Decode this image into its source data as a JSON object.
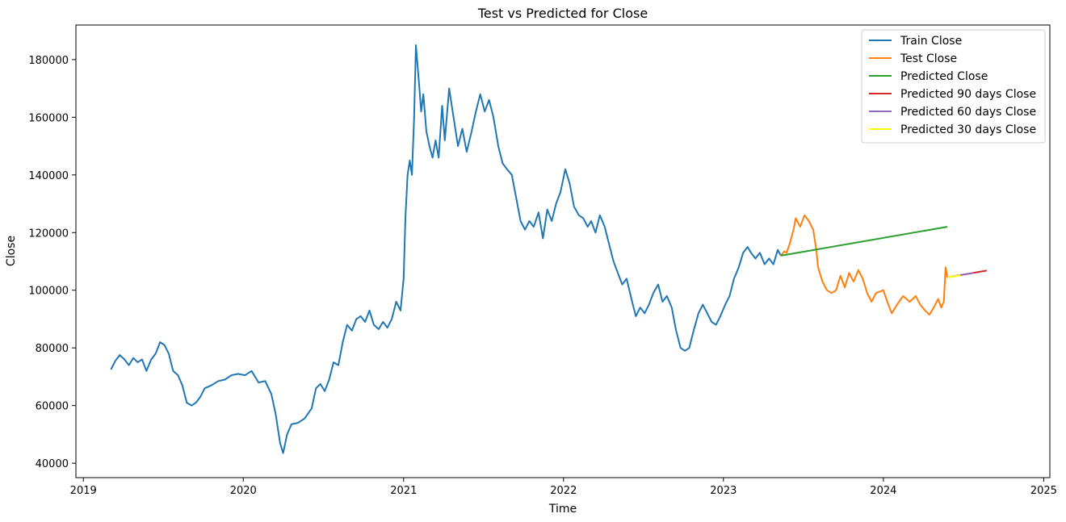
{
  "chart_data": {
    "type": "line",
    "title": "Test vs Predicted for Close",
    "xlabel": "Time",
    "ylabel": "Close",
    "x_scale": "date",
    "xlim": [
      "2018-12-15",
      "2025-01-15"
    ],
    "ylim": [
      35000,
      192000
    ],
    "grid": false,
    "legend_position": "top-right",
    "x_ticks": [
      {
        "date": "2019-01-01",
        "label": "2019"
      },
      {
        "date": "2020-01-01",
        "label": "2020"
      },
      {
        "date": "2021-01-01",
        "label": "2021"
      },
      {
        "date": "2022-01-01",
        "label": "2022"
      },
      {
        "date": "2023-01-01",
        "label": "2023"
      },
      {
        "date": "2024-01-01",
        "label": "2024"
      },
      {
        "date": "2025-01-01",
        "label": "2025"
      }
    ],
    "y_ticks": [
      {
        "value": 40000,
        "label": "40000"
      },
      {
        "value": 60000,
        "label": "60000"
      },
      {
        "value": 80000,
        "label": "80000"
      },
      {
        "value": 100000,
        "label": "100000"
      },
      {
        "value": 120000,
        "label": "120000"
      },
      {
        "value": 140000,
        "label": "140000"
      },
      {
        "value": 160000,
        "label": "160000"
      },
      {
        "value": 180000,
        "label": "180000"
      }
    ],
    "series": [
      {
        "name": "Train Close",
        "color": "#1f77b4",
        "points": [
          [
            "2019-03-05",
            72500
          ],
          [
            "2019-03-15",
            75500
          ],
          [
            "2019-03-25",
            77500
          ],
          [
            "2019-04-05",
            76000
          ],
          [
            "2019-04-15",
            74000
          ],
          [
            "2019-04-25",
            76500
          ],
          [
            "2019-05-05",
            75000
          ],
          [
            "2019-05-15",
            76000
          ],
          [
            "2019-05-25",
            72000
          ],
          [
            "2019-06-05",
            76000
          ],
          [
            "2019-06-15",
            78000
          ],
          [
            "2019-06-25",
            82000
          ],
          [
            "2019-07-05",
            81000
          ],
          [
            "2019-07-15",
            78000
          ],
          [
            "2019-07-25",
            72000
          ],
          [
            "2019-08-05",
            70500
          ],
          [
            "2019-08-15",
            67000
          ],
          [
            "2019-08-25",
            61000
          ],
          [
            "2019-09-05",
            60000
          ],
          [
            "2019-09-15",
            61000
          ],
          [
            "2019-09-25",
            63000
          ],
          [
            "2019-10-05",
            66000
          ],
          [
            "2019-10-20",
            67000
          ],
          [
            "2019-11-05",
            68500
          ],
          [
            "2019-11-20",
            69000
          ],
          [
            "2019-12-05",
            70500
          ],
          [
            "2019-12-20",
            71000
          ],
          [
            "2020-01-05",
            70500
          ],
          [
            "2020-01-20",
            72000
          ],
          [
            "2020-02-05",
            68000
          ],
          [
            "2020-02-20",
            68500
          ],
          [
            "2020-03-05",
            64000
          ],
          [
            "2020-03-15",
            57000
          ],
          [
            "2020-03-25",
            47000
          ],
          [
            "2020-04-01",
            43500
          ],
          [
            "2020-04-10",
            50000
          ],
          [
            "2020-04-20",
            53500
          ],
          [
            "2020-05-05",
            54000
          ],
          [
            "2020-05-20",
            55500
          ],
          [
            "2020-06-05",
            59000
          ],
          [
            "2020-06-15",
            66000
          ],
          [
            "2020-06-25",
            67500
          ],
          [
            "2020-07-05",
            65000
          ],
          [
            "2020-07-15",
            69000
          ],
          [
            "2020-07-25",
            75000
          ],
          [
            "2020-08-05",
            74000
          ],
          [
            "2020-08-15",
            82000
          ],
          [
            "2020-08-25",
            88000
          ],
          [
            "2020-09-05",
            86000
          ],
          [
            "2020-09-15",
            90000
          ],
          [
            "2020-09-25",
            91000
          ],
          [
            "2020-10-05",
            89000
          ],
          [
            "2020-10-15",
            93000
          ],
          [
            "2020-10-25",
            88000
          ],
          [
            "2020-11-05",
            86500
          ],
          [
            "2020-11-15",
            89000
          ],
          [
            "2020-11-25",
            87000
          ],
          [
            "2020-12-05",
            90000
          ],
          [
            "2020-12-15",
            96000
          ],
          [
            "2020-12-25",
            93000
          ],
          [
            "2021-01-01",
            104000
          ],
          [
            "2021-01-05",
            125000
          ],
          [
            "2021-01-10",
            140000
          ],
          [
            "2021-01-15",
            145000
          ],
          [
            "2021-01-20",
            140000
          ],
          [
            "2021-01-25",
            160000
          ],
          [
            "2021-01-29",
            185000
          ],
          [
            "2021-02-05",
            172000
          ],
          [
            "2021-02-10",
            162000
          ],
          [
            "2021-02-15",
            168000
          ],
          [
            "2021-02-22",
            155000
          ],
          [
            "2021-03-01",
            150000
          ],
          [
            "2021-03-08",
            146000
          ],
          [
            "2021-03-15",
            152000
          ],
          [
            "2021-03-22",
            146000
          ],
          [
            "2021-03-30",
            164000
          ],
          [
            "2021-04-05",
            152000
          ],
          [
            "2021-04-15",
            170000
          ],
          [
            "2021-04-25",
            160000
          ],
          [
            "2021-05-05",
            150000
          ],
          [
            "2021-05-15",
            156000
          ],
          [
            "2021-05-25",
            148000
          ],
          [
            "2021-06-05",
            155000
          ],
          [
            "2021-06-15",
            162000
          ],
          [
            "2021-06-25",
            168000
          ],
          [
            "2021-07-05",
            162000
          ],
          [
            "2021-07-15",
            166000
          ],
          [
            "2021-07-25",
            160000
          ],
          [
            "2021-08-05",
            150000
          ],
          [
            "2021-08-15",
            144000
          ],
          [
            "2021-08-25",
            142000
          ],
          [
            "2021-09-05",
            140000
          ],
          [
            "2021-09-15",
            132000
          ],
          [
            "2021-09-25",
            124000
          ],
          [
            "2021-10-05",
            121000
          ],
          [
            "2021-10-15",
            124000
          ],
          [
            "2021-10-25",
            122000
          ],
          [
            "2021-11-05",
            127000
          ],
          [
            "2021-11-15",
            118000
          ],
          [
            "2021-11-25",
            128000
          ],
          [
            "2021-12-05",
            124000
          ],
          [
            "2021-12-15",
            130000
          ],
          [
            "2021-12-25",
            134000
          ],
          [
            "2022-01-05",
            142000
          ],
          [
            "2022-01-15",
            137000
          ],
          [
            "2022-01-25",
            129000
          ],
          [
            "2022-02-05",
            126000
          ],
          [
            "2022-02-15",
            125000
          ],
          [
            "2022-02-25",
            122000
          ],
          [
            "2022-03-05",
            124000
          ],
          [
            "2022-03-15",
            120000
          ],
          [
            "2022-03-25",
            126000
          ],
          [
            "2022-04-05",
            122000
          ],
          [
            "2022-04-15",
            116000
          ],
          [
            "2022-04-25",
            110000
          ],
          [
            "2022-05-05",
            106000
          ],
          [
            "2022-05-15",
            102000
          ],
          [
            "2022-05-25",
            104000
          ],
          [
            "2022-06-05",
            97000
          ],
          [
            "2022-06-15",
            91000
          ],
          [
            "2022-06-25",
            94000
          ],
          [
            "2022-07-05",
            92000
          ],
          [
            "2022-07-15",
            95000
          ],
          [
            "2022-07-25",
            99000
          ],
          [
            "2022-08-05",
            102000
          ],
          [
            "2022-08-15",
            96000
          ],
          [
            "2022-08-25",
            98000
          ],
          [
            "2022-09-05",
            94000
          ],
          [
            "2022-09-15",
            86000
          ],
          [
            "2022-09-25",
            80000
          ],
          [
            "2022-10-05",
            79000
          ],
          [
            "2022-10-15",
            80000
          ],
          [
            "2022-10-25",
            86000
          ],
          [
            "2022-11-05",
            92000
          ],
          [
            "2022-11-15",
            95000
          ],
          [
            "2022-11-25",
            92000
          ],
          [
            "2022-12-05",
            89000
          ],
          [
            "2022-12-15",
            88000
          ],
          [
            "2022-12-25",
            91000
          ],
          [
            "2023-01-05",
            95000
          ],
          [
            "2023-01-15",
            98000
          ],
          [
            "2023-01-25",
            104000
          ],
          [
            "2023-02-05",
            108000
          ],
          [
            "2023-02-15",
            113000
          ],
          [
            "2023-02-25",
            115000
          ],
          [
            "2023-03-05",
            113000
          ],
          [
            "2023-03-15",
            111000
          ],
          [
            "2023-03-25",
            113000
          ],
          [
            "2023-04-05",
            109000
          ],
          [
            "2023-04-15",
            111000
          ],
          [
            "2023-04-25",
            109000
          ],
          [
            "2023-05-05",
            114000
          ],
          [
            "2023-05-12",
            112000
          ]
        ]
      },
      {
        "name": "Test Close",
        "color": "#ff7f0e",
        "points": [
          [
            "2023-05-12",
            112000
          ],
          [
            "2023-05-20",
            113500
          ],
          [
            "2023-05-25",
            113000
          ],
          [
            "2023-06-01",
            116000
          ],
          [
            "2023-06-10",
            121000
          ],
          [
            "2023-06-15",
            125000
          ],
          [
            "2023-06-25",
            122000
          ],
          [
            "2023-07-05",
            126000
          ],
          [
            "2023-07-15",
            124000
          ],
          [
            "2023-07-25",
            121000
          ],
          [
            "2023-08-01",
            114000
          ],
          [
            "2023-08-05",
            108000
          ],
          [
            "2023-08-15",
            103000
          ],
          [
            "2023-08-25",
            100000
          ],
          [
            "2023-09-05",
            99000
          ],
          [
            "2023-09-15",
            100000
          ],
          [
            "2023-09-25",
            105000
          ],
          [
            "2023-10-05",
            101000
          ],
          [
            "2023-10-15",
            106000
          ],
          [
            "2023-10-25",
            103000
          ],
          [
            "2023-11-05",
            107000
          ],
          [
            "2023-11-15",
            104000
          ],
          [
            "2023-11-25",
            99000
          ],
          [
            "2023-12-05",
            96000
          ],
          [
            "2023-12-15",
            99000
          ],
          [
            "2024-01-01",
            100000
          ],
          [
            "2024-01-10",
            96000
          ],
          [
            "2024-01-20",
            92000
          ],
          [
            "2024-02-01",
            95000
          ],
          [
            "2024-02-15",
            98000
          ],
          [
            "2024-03-01",
            96000
          ],
          [
            "2024-03-15",
            98000
          ],
          [
            "2024-03-25",
            95000
          ],
          [
            "2024-04-05",
            93000
          ],
          [
            "2024-04-15",
            91500
          ],
          [
            "2024-04-25",
            94000
          ],
          [
            "2024-05-05",
            97000
          ],
          [
            "2024-05-12",
            94000
          ],
          [
            "2024-05-18",
            96000
          ],
          [
            "2024-05-22",
            108000
          ],
          [
            "2024-05-26",
            104500
          ]
        ]
      },
      {
        "name": "Predicted Close",
        "color": "#2ca02c",
        "points": [
          [
            "2023-05-12",
            112000
          ],
          [
            "2024-05-26",
            122000
          ]
        ]
      },
      {
        "name": "Predicted 90 days Close",
        "color": "#d62728",
        "points": [
          [
            "2024-05-26",
            104500
          ],
          [
            "2024-08-24",
            106800
          ]
        ]
      },
      {
        "name": "Predicted 60 days Close",
        "color": "#9467bd",
        "points": [
          [
            "2024-05-26",
            104500
          ],
          [
            "2024-07-25",
            106000
          ]
        ]
      },
      {
        "name": "Predicted 30 days Close",
        "color": "#ffff00",
        "points": [
          [
            "2024-05-26",
            104500
          ],
          [
            "2024-06-25",
            105200
          ]
        ]
      }
    ]
  }
}
